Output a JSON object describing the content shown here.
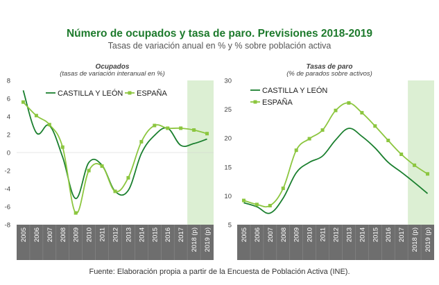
{
  "header": {
    "title": "Número de ocupados y tasa de paro. Previsiones 2018-2019",
    "subtitle": "Tasas de variación anual en % y % sobre población activa"
  },
  "footer": {
    "source": "Fuente: Elaboración propia a partir de la Encuesta de Población Activa (INE)."
  },
  "colors": {
    "castilla": "#1a7f2e",
    "espana": "#8cc63f",
    "forecast_band": "#dcefd3",
    "axis_band": "#6e6e6e",
    "grid": "#dddddd"
  },
  "chart_data": [
    {
      "type": "line",
      "title": "Ocupados",
      "subtitle": "(tasas de variación interanual en %)",
      "categories": [
        "2005",
        "2006",
        "2007",
        "2008",
        "2009",
        "2010",
        "2011",
        "2012",
        "2013",
        "2014",
        "2015",
        "2016",
        "2017",
        "2018 (p)",
        "2019 (p)"
      ],
      "ylim": [
        -8,
        8
      ],
      "yticks": [
        -8,
        -6,
        -4,
        -2,
        0,
        2,
        4,
        6,
        8
      ],
      "forecast_categories": [
        "2018 (p)",
        "2019 (p)"
      ],
      "legend_position": "top",
      "grid": false,
      "series": [
        {
          "name": "CASTILLA Y LEÓN",
          "values": [
            6.9,
            2.2,
            3.0,
            -0.5,
            -5.1,
            -1.1,
            -1.4,
            -4.3,
            -4.2,
            -0.1,
            1.9,
            2.7,
            0.8,
            1.0,
            1.5
          ]
        },
        {
          "name": "ESPAÑA",
          "values": [
            5.6,
            4.1,
            3.1,
            0.6,
            -6.7,
            -2.0,
            -1.5,
            -4.3,
            -2.8,
            1.2,
            3.0,
            2.7,
            2.7,
            2.5,
            2.1
          ]
        }
      ]
    },
    {
      "type": "line",
      "title": "Tasas de paro",
      "subtitle": "(% de parados sobre activos)",
      "categories": [
        "2005",
        "2006",
        "2007",
        "2008",
        "2009",
        "2010",
        "2011",
        "2012",
        "2013",
        "2014",
        "2015",
        "2016",
        "2017",
        "2018 (p)",
        "2019 (p)"
      ],
      "ylim": [
        5,
        30
      ],
      "yticks": [
        5,
        10,
        15,
        20,
        25,
        30
      ],
      "forecast_categories": [
        "2018 (p)",
        "2019 (p)"
      ],
      "legend_position": "top-left",
      "grid": false,
      "series": [
        {
          "name": "CASTILLA Y LEÓN",
          "values": [
            8.8,
            8.1,
            7.0,
            9.6,
            14.0,
            15.8,
            16.9,
            19.7,
            21.7,
            20.3,
            18.3,
            15.8,
            14.1,
            12.3,
            10.4
          ]
        },
        {
          "name": "ESPAÑA",
          "values": [
            9.2,
            8.5,
            8.3,
            11.3,
            17.9,
            19.9,
            21.4,
            24.8,
            26.1,
            24.4,
            22.1,
            19.6,
            17.2,
            15.3,
            13.8
          ]
        }
      ]
    }
  ]
}
